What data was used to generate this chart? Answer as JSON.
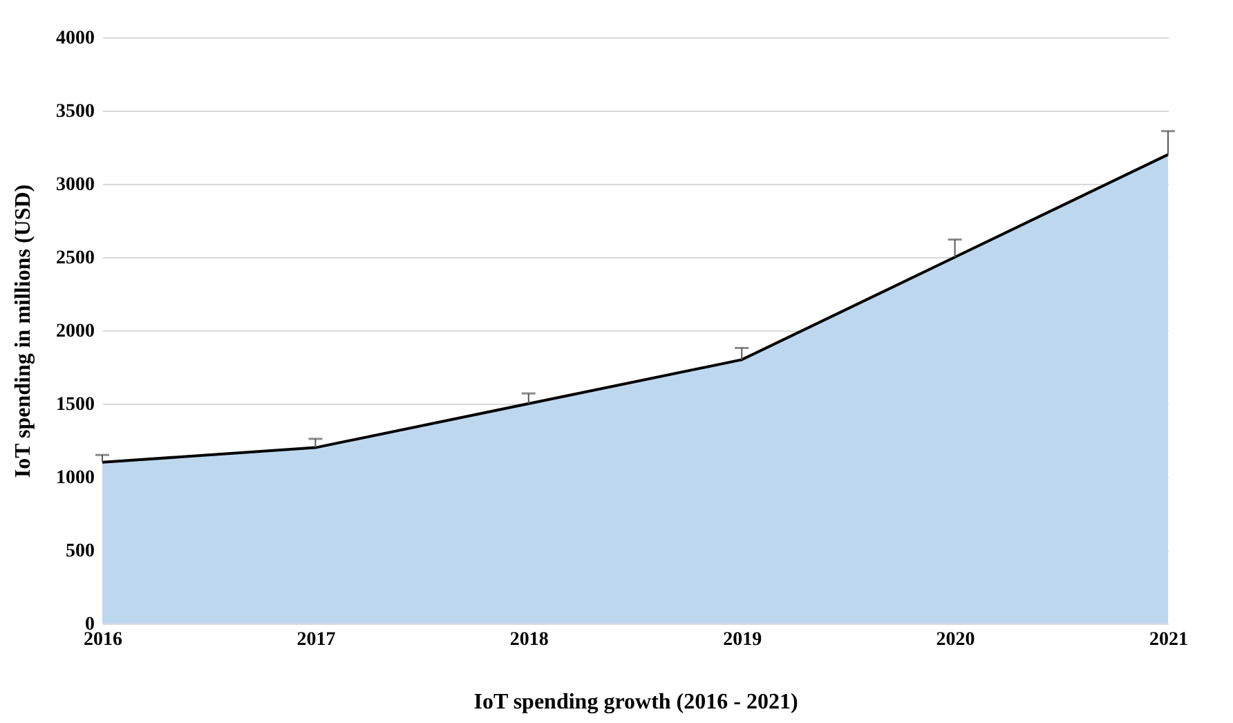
{
  "chart_data": {
    "type": "area",
    "xlabel": "IoT spending growth (2016 - 2021)",
    "ylabel": "IoT spending in millions (USD)",
    "categories": [
      "2016",
      "2017",
      "2018",
      "2019",
      "2020",
      "2021"
    ],
    "values": [
      1100,
      1200,
      1500,
      1800,
      2500,
      3200
    ],
    "errors": [
      [
        1100,
        1150
      ],
      [
        1200,
        1260
      ],
      [
        1500,
        1570
      ],
      [
        1800,
        1880
      ],
      [
        2500,
        2620
      ],
      [
        3200,
        3360
      ]
    ],
    "color": "#bdd7ee",
    "ylim": [
      0,
      4000
    ],
    "yticks": [
      0,
      500,
      1000,
      1500,
      2000,
      2500,
      3000,
      3500,
      4000
    ],
    "grid": "y"
  }
}
